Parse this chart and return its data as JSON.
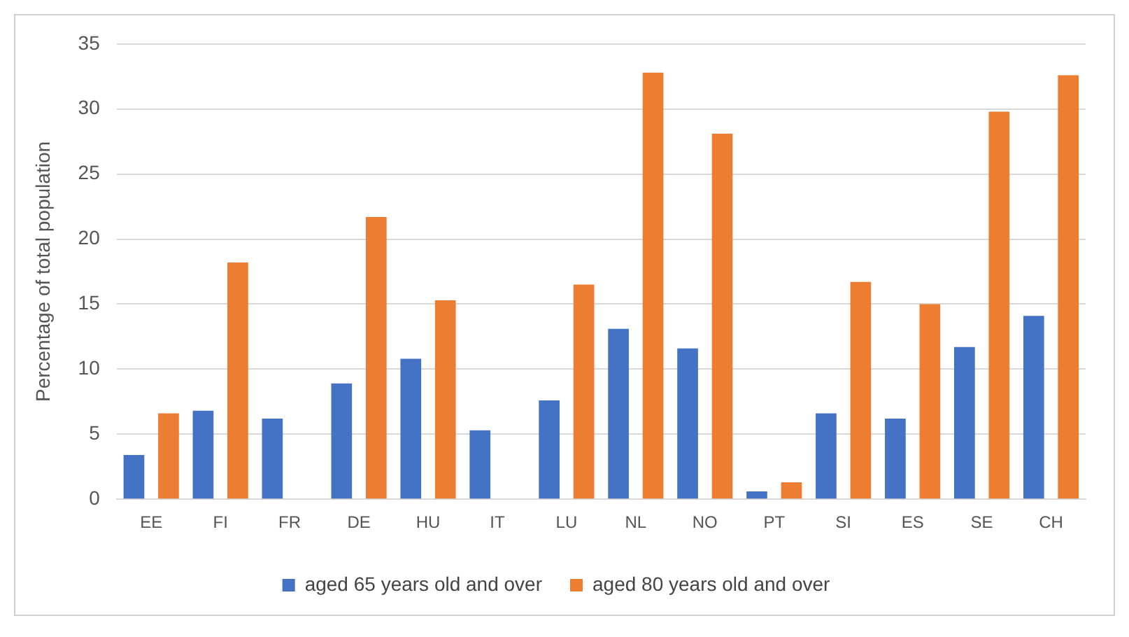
{
  "chart_data": {
    "type": "bar",
    "ylabel": "Percentage of total population",
    "categories": [
      "EE",
      "FI",
      "FR",
      "DE",
      "HU",
      "IT",
      "LU",
      "NL",
      "NO",
      "PT",
      "SI",
      "ES",
      "SE",
      "CH"
    ],
    "series": [
      {
        "name": "aged 65 years old and over",
        "color": "#4472c4",
        "values": [
          3.4,
          6.8,
          6.2,
          8.9,
          10.8,
          5.3,
          7.6,
          13.1,
          11.6,
          0.6,
          6.6,
          6.2,
          11.7,
          14.1
        ]
      },
      {
        "name": "aged 80 years old and over",
        "color": "#ed7d31",
        "values": [
          6.6,
          18.2,
          null,
          21.7,
          15.3,
          null,
          16.5,
          32.8,
          28.1,
          1.3,
          16.7,
          15.0,
          29.8,
          32.6
        ]
      }
    ],
    "ylim": [
      0,
      35
    ],
    "yticks": [
      0,
      5,
      10,
      15,
      20,
      25,
      30,
      35
    ],
    "grid": "y",
    "legend": "bottom"
  }
}
